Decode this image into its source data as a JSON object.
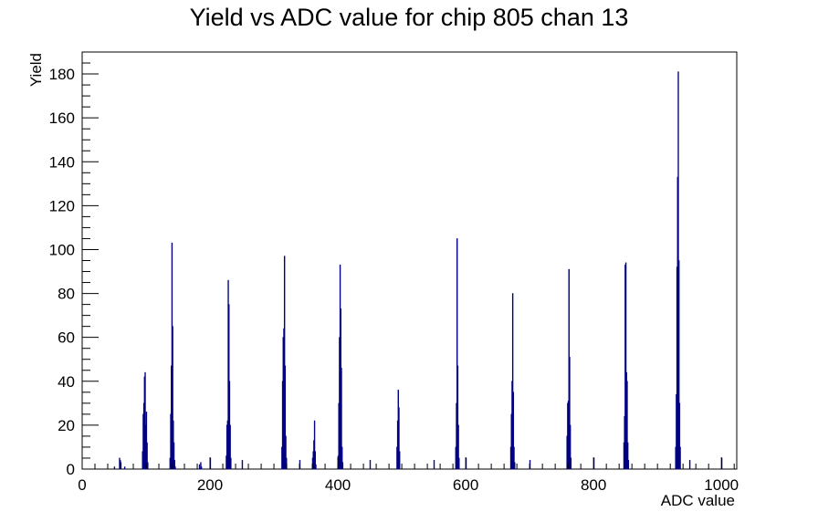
{
  "chart_data": {
    "type": "bar",
    "title": "Yield vs ADC value for chip 805 chan 13",
    "xlabel": "ADC value",
    "ylabel": "Yield",
    "xlim": [
      0,
      1024
    ],
    "ylim": [
      0,
      190
    ],
    "xticks": [
      0,
      200,
      400,
      600,
      800,
      1000
    ],
    "yticks": [
      0,
      20,
      40,
      60,
      80,
      100,
      120,
      140,
      160,
      180
    ],
    "grid": false,
    "legend": "none",
    "line_color": "#000080",
    "series": [
      {
        "bins": [
          [
            50,
            1
          ],
          [
            58,
            5
          ],
          [
            59,
            4
          ],
          [
            60,
            3
          ],
          [
            66,
            1
          ],
          [
            94,
            8
          ],
          [
            95,
            25
          ],
          [
            96,
            30
          ],
          [
            97,
            42
          ],
          [
            98,
            44
          ],
          [
            99,
            20
          ],
          [
            100,
            26
          ],
          [
            101,
            12
          ],
          [
            102,
            3
          ],
          [
            137,
            5
          ],
          [
            138,
            25
          ],
          [
            139,
            47
          ],
          [
            140,
            103
          ],
          [
            141,
            65
          ],
          [
            142,
            22
          ],
          [
            143,
            12
          ],
          [
            144,
            4
          ],
          [
            145,
            1
          ],
          [
            183,
            2
          ],
          [
            185,
            3
          ],
          [
            186,
            1
          ],
          [
            200,
            5
          ],
          [
            225,
            6
          ],
          [
            226,
            20
          ],
          [
            227,
            22
          ],
          [
            228,
            86
          ],
          [
            229,
            75
          ],
          [
            230,
            40
          ],
          [
            231,
            20
          ],
          [
            232,
            5
          ],
          [
            250,
            4
          ],
          [
            312,
            10
          ],
          [
            313,
            40
          ],
          [
            314,
            60
          ],
          [
            315,
            64
          ],
          [
            316,
            97
          ],
          [
            317,
            47
          ],
          [
            318,
            15
          ],
          [
            319,
            5
          ],
          [
            340,
            4
          ],
          [
            360,
            5
          ],
          [
            361,
            8
          ],
          [
            362,
            13
          ],
          [
            363,
            22
          ],
          [
            364,
            8
          ],
          [
            365,
            2
          ],
          [
            400,
            6
          ],
          [
            401,
            30
          ],
          [
            402,
            60
          ],
          [
            403,
            93
          ],
          [
            404,
            73
          ],
          [
            405,
            46
          ],
          [
            406,
            10
          ],
          [
            407,
            3
          ],
          [
            450,
            4
          ],
          [
            492,
            10
          ],
          [
            493,
            22
          ],
          [
            494,
            36
          ],
          [
            495,
            28
          ],
          [
            496,
            8
          ],
          [
            550,
            4
          ],
          [
            584,
            10
          ],
          [
            585,
            30
          ],
          [
            586,
            105
          ],
          [
            587,
            47
          ],
          [
            588,
            20
          ],
          [
            589,
            5
          ],
          [
            600,
            5
          ],
          [
            670,
            10
          ],
          [
            671,
            25
          ],
          [
            672,
            40
          ],
          [
            673,
            80
          ],
          [
            674,
            35
          ],
          [
            675,
            10
          ],
          [
            676,
            3
          ],
          [
            700,
            4
          ],
          [
            758,
            15
          ],
          [
            759,
            30
          ],
          [
            760,
            31
          ],
          [
            761,
            91
          ],
          [
            762,
            51
          ],
          [
            763,
            20
          ],
          [
            764,
            5
          ],
          [
            800,
            5
          ],
          [
            847,
            12
          ],
          [
            848,
            24
          ],
          [
            849,
            93
          ],
          [
            850,
            94
          ],
          [
            851,
            44
          ],
          [
            852,
            40
          ],
          [
            853,
            12
          ],
          [
            854,
            4
          ],
          [
            928,
            10
          ],
          [
            929,
            34
          ],
          [
            930,
            92
          ],
          [
            931,
            133
          ],
          [
            932,
            181
          ],
          [
            933,
            95
          ],
          [
            934,
            30
          ],
          [
            935,
            10
          ],
          [
            950,
            4
          ],
          [
            1000,
            5
          ]
        ]
      }
    ]
  }
}
